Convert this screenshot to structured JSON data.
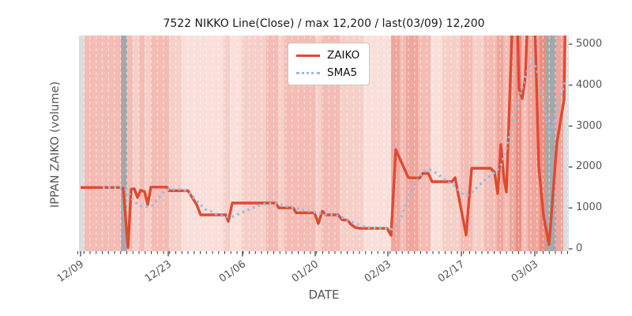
{
  "title": "7522 NIKKO Line(Close) / max 12,200 / last(03/09) 12,200",
  "legend": {
    "items": [
      {
        "label": "ZAIKO",
        "color": "#df4a31",
        "style": "solid"
      },
      {
        "label": "SMA5",
        "color": "#9dbbdb",
        "style": "dotted"
      }
    ]
  },
  "axes": {
    "x_label": "DATE",
    "y_label": "IPPAN ZAIKO (volume)"
  },
  "chart_data": {
    "type": "line",
    "title": "7522 NIKKO Line(Close) / max 12,200 / last(03/09) 12,200",
    "xlabel": "DATE",
    "ylabel": "IPPAN ZAIKO (volume)",
    "ylim": [
      0,
      5000
    ],
    "grid": "white dashed vertical per-day lines over shaded bands",
    "legend_position": "upper center-left inside plot",
    "y_ticks": [
      0,
      1000,
      2000,
      3000,
      4000,
      5000
    ],
    "x_major_ticks": [
      {
        "label": "12/09",
        "x": 102
      },
      {
        "label": "12/23",
        "x": 213
      },
      {
        "label": "01/06",
        "x": 307
      },
      {
        "label": "01/20",
        "x": 399
      },
      {
        "label": "02/03",
        "x": 491
      },
      {
        "label": "02/17",
        "x": 584
      },
      {
        "label": "03/03",
        "x": 677
      }
    ],
    "x_minor_ticks": {
      "start": 98.5,
      "step": 7.75,
      "count": 81
    },
    "clip_note": "values above ~5200 are clipped at plot top; reported max/last = 12,200 on 03/09",
    "series": [
      {
        "name": "ZAIKO",
        "color": "#df4a31",
        "style": "solid",
        "width": 3.4,
        "points": [
          [
            102,
            1500
          ],
          [
            152,
            1500
          ],
          [
            156,
            1480
          ],
          [
            162,
            30
          ],
          [
            166,
            1460
          ],
          [
            170,
            1470
          ],
          [
            174,
            1255
          ],
          [
            178,
            1430
          ],
          [
            183,
            1400
          ],
          [
            187,
            1080
          ],
          [
            191,
            1510
          ],
          [
            211,
            1510
          ],
          [
            214,
            1420
          ],
          [
            238,
            1420
          ],
          [
            249,
            1080
          ],
          [
            254,
            830
          ],
          [
            286,
            830
          ],
          [
            289,
            670
          ],
          [
            294,
            1120
          ],
          [
            349,
            1120
          ],
          [
            353,
            1000
          ],
          [
            371,
            1000
          ],
          [
            375,
            880
          ],
          [
            398,
            880
          ],
          [
            403,
            620
          ],
          [
            408,
            920
          ],
          [
            413,
            830
          ],
          [
            428,
            830
          ],
          [
            433,
            710
          ],
          [
            440,
            700
          ],
          [
            444,
            600
          ],
          [
            450,
            520
          ],
          [
            456,
            500
          ],
          [
            490,
            500
          ],
          [
            495,
            330
          ],
          [
            501,
            2420
          ],
          [
            509,
            2080
          ],
          [
            517,
            1740
          ],
          [
            531,
            1730
          ],
          [
            535,
            1845
          ],
          [
            542,
            1845
          ],
          [
            547,
            1640
          ],
          [
            572,
            1640
          ],
          [
            576,
            1740
          ],
          [
            590,
            340
          ],
          [
            597,
            1970
          ],
          [
            621,
            1970
          ],
          [
            626,
            1870
          ],
          [
            630,
            1350
          ],
          [
            634,
            2550
          ],
          [
            638,
            1700
          ],
          [
            641,
            1390
          ],
          [
            650,
            6300
          ],
          [
            654,
            6300
          ],
          [
            657,
            3920
          ],
          [
            661,
            3670
          ],
          [
            665,
            4200
          ],
          [
            669,
            6300
          ],
          [
            676,
            6300
          ],
          [
            682,
            2000
          ],
          [
            688,
            810
          ],
          [
            695,
            100
          ],
          [
            705,
            2600
          ],
          [
            714,
            3650
          ],
          [
            720,
            12200
          ]
        ]
      },
      {
        "name": "SMA5",
        "color": "#9dbbdb",
        "style": "dotted",
        "width": 3.4,
        "points": [
          [
            130,
            1500
          ],
          [
            152,
            1500
          ],
          [
            158,
            1470
          ],
          [
            163,
            1350
          ],
          [
            168,
            1195
          ],
          [
            174,
            1100
          ],
          [
            180,
            1030
          ],
          [
            186,
            1030
          ],
          [
            193,
            1060
          ],
          [
            200,
            1215
          ],
          [
            207,
            1390
          ],
          [
            213,
            1450
          ],
          [
            226,
            1460
          ],
          [
            233,
            1440
          ],
          [
            240,
            1350
          ],
          [
            247,
            1215
          ],
          [
            253,
            1100
          ],
          [
            260,
            965
          ],
          [
            268,
            905
          ],
          [
            275,
            840
          ],
          [
            283,
            800
          ],
          [
            290,
            775
          ],
          [
            297,
            800
          ],
          [
            304,
            870
          ],
          [
            311,
            930
          ],
          [
            320,
            1000
          ],
          [
            328,
            1060
          ],
          [
            336,
            1100
          ],
          [
            344,
            1110
          ],
          [
            352,
            1100
          ],
          [
            360,
            1060
          ],
          [
            368,
            1010
          ],
          [
            376,
            980
          ],
          [
            384,
            950
          ],
          [
            392,
            920
          ],
          [
            400,
            890
          ],
          [
            408,
            860
          ],
          [
            416,
            835
          ],
          [
            424,
            825
          ],
          [
            430,
            800
          ],
          [
            436,
            740
          ],
          [
            442,
            690
          ],
          [
            448,
            640
          ],
          [
            454,
            590
          ],
          [
            460,
            545
          ],
          [
            466,
            520
          ],
          [
            472,
            510
          ],
          [
            478,
            505
          ],
          [
            484,
            515
          ],
          [
            490,
            500
          ],
          [
            496,
            480
          ],
          [
            502,
            560
          ],
          [
            508,
            800
          ],
          [
            514,
            1100
          ],
          [
            520,
            1390
          ],
          [
            526,
            1600
          ],
          [
            532,
            1790
          ],
          [
            538,
            1900
          ],
          [
            544,
            1930
          ],
          [
            550,
            1880
          ],
          [
            556,
            1800
          ],
          [
            562,
            1700
          ],
          [
            568,
            1620
          ],
          [
            574,
            1560
          ],
          [
            580,
            1450
          ],
          [
            586,
            1340
          ],
          [
            592,
            1320
          ],
          [
            598,
            1400
          ],
          [
            604,
            1500
          ],
          [
            610,
            1620
          ],
          [
            616,
            1720
          ],
          [
            622,
            1800
          ],
          [
            628,
            1900
          ],
          [
            634,
            2030
          ],
          [
            640,
            2380
          ],
          [
            646,
            2850
          ],
          [
            652,
            3350
          ],
          [
            658,
            3750
          ],
          [
            664,
            4150
          ],
          [
            670,
            4450
          ],
          [
            675,
            4580
          ],
          [
            681,
            4300
          ],
          [
            687,
            3670
          ],
          [
            692,
            3100
          ],
          [
            697,
            2840
          ],
          [
            703,
            3190
          ],
          [
            709,
            3700
          ],
          [
            715,
            4060
          ]
        ]
      }
    ],
    "background_bands": {
      "palette": {
        "E": "#dcdcdc",
        "G": "#a7a7ab",
        "L0": "#fadfdb",
        "L1": "#f7cfc9",
        "L2": "#f4bcb4",
        "L3": "#f0a69c",
        "L4": "#ec8e83"
      },
      "bands": [
        [
          100,
          107,
          "E"
        ],
        [
          107,
          153,
          "L2"
        ],
        [
          153,
          161,
          "G"
        ],
        [
          161,
          168,
          "L2"
        ],
        [
          168,
          176,
          "L1"
        ],
        [
          176,
          183,
          "L2"
        ],
        [
          183,
          191,
          "L1"
        ],
        [
          191,
          214,
          "L2"
        ],
        [
          214,
          230,
          "L1"
        ],
        [
          230,
          283,
          "L0"
        ],
        [
          283,
          291,
          "L1"
        ],
        [
          291,
          306,
          "L0"
        ],
        [
          306,
          337,
          "L1"
        ],
        [
          337,
          352,
          "L2"
        ],
        [
          352,
          360,
          "L1"
        ],
        [
          360,
          399,
          "L2"
        ],
        [
          399,
          407,
          "L1"
        ],
        [
          407,
          430,
          "L2"
        ],
        [
          430,
          460,
          "L1"
        ],
        [
          460,
          495,
          "L0"
        ],
        [
          495,
          506,
          "L3"
        ],
        [
          506,
          514,
          "L2"
        ],
        [
          514,
          529,
          "L3"
        ],
        [
          529,
          545,
          "L2"
        ],
        [
          545,
          560,
          "L0"
        ],
        [
          560,
          583,
          "L1"
        ],
        [
          583,
          598,
          "L2"
        ],
        [
          598,
          613,
          "L1"
        ],
        [
          613,
          629,
          "L2"
        ],
        [
          629,
          637,
          "L3"
        ],
        [
          637,
          645,
          "L2"
        ],
        [
          645,
          653,
          "L3"
        ],
        [
          653,
          660,
          "L4"
        ],
        [
          660,
          668,
          "L2"
        ],
        [
          668,
          683,
          "L3"
        ],
        [
          683,
          691,
          "L4"
        ],
        [
          691,
          704,
          "G"
        ],
        [
          704,
          713,
          "L3"
        ],
        [
          713,
          720,
          "E"
        ]
      ]
    }
  }
}
